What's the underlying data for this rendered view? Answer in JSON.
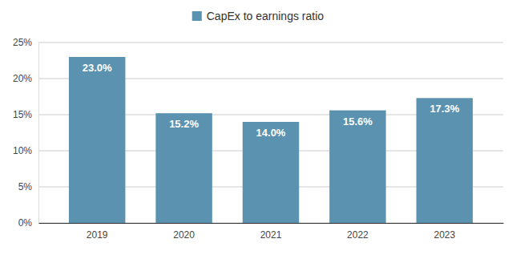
{
  "chart_data": {
    "type": "bar",
    "categories": [
      "2019",
      "2020",
      "2021",
      "2022",
      "2023"
    ],
    "series": [
      {
        "name": "CapEx to earnings ratio",
        "color": "#5a92b0",
        "values": [
          23.0,
          15.2,
          14.0,
          15.6,
          17.3
        ],
        "value_labels": [
          "23.0%",
          "15.2%",
          "14.0%",
          "15.6%",
          "17.3%"
        ]
      }
    ],
    "ylim": [
      0,
      25
    ],
    "yticks": [
      {
        "value": 0,
        "label": "0%"
      },
      {
        "value": 5,
        "label": "5%"
      },
      {
        "value": 10,
        "label": "10%"
      },
      {
        "value": 15,
        "label": "15%"
      },
      {
        "value": 20,
        "label": "20%"
      },
      {
        "value": 25,
        "label": "25%"
      }
    ],
    "grid": true,
    "legend": "top",
    "data_labels": true
  }
}
